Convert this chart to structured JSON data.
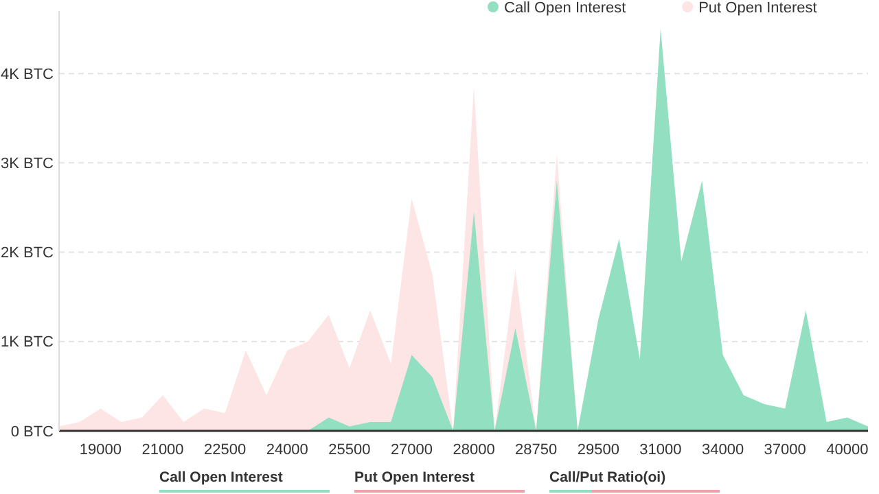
{
  "chart_data": {
    "type": "area",
    "categories": [
      null,
      null,
      "19000",
      null,
      null,
      "21000",
      null,
      null,
      "22500",
      null,
      null,
      "24000",
      null,
      null,
      "25500",
      null,
      null,
      "27000",
      null,
      null,
      "28000",
      null,
      null,
      "28750",
      null,
      null,
      "29500",
      null,
      null,
      "31000",
      null,
      null,
      "34000",
      null,
      null,
      "37000",
      null,
      null,
      "40000",
      null
    ],
    "series": [
      {
        "name": "Put Open Interest",
        "color": "#fde4e5",
        "values": [
          50,
          100,
          250,
          100,
          150,
          400,
          100,
          250,
          200,
          900,
          400,
          900,
          1000,
          1300,
          700,
          1350,
          750,
          2600,
          1750,
          0,
          3850,
          0,
          1800,
          0,
          3100,
          0,
          null,
          null,
          null,
          null,
          null,
          null,
          null,
          null,
          null,
          null,
          null,
          null,
          null,
          null
        ]
      },
      {
        "name": "Call Open Interest",
        "color": "#93dfc1",
        "values": [
          0,
          0,
          0,
          0,
          0,
          0,
          0,
          0,
          0,
          0,
          0,
          0,
          0,
          150,
          50,
          100,
          100,
          850,
          600,
          0,
          2450,
          0,
          1150,
          0,
          2800,
          0,
          1250,
          2150,
          800,
          4500,
          1900,
          2800,
          850,
          400,
          300,
          250,
          1350,
          100,
          150,
          50
        ]
      }
    ],
    "ylim": [
      0,
      4700
    ],
    "yticks": [
      {
        "value": 0,
        "label": "0 BTC"
      },
      {
        "value": 1000,
        "label": "1K BTC"
      },
      {
        "value": 2000,
        "label": "2K BTC"
      },
      {
        "value": 3000,
        "label": "3K BTC"
      },
      {
        "value": 4000,
        "label": "4K BTC"
      }
    ],
    "grid": "y",
    "legend": "top right",
    "annotations": [
      "Call Open Interest",
      "Put Open Interest",
      "Call/Put Ratio(oi)"
    ]
  }
}
